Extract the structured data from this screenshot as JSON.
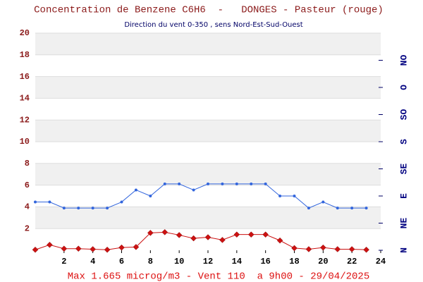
{
  "chart_data": {
    "type": "line",
    "title": "Concentration de Benzene C6H6  -   DONGES - Pasteur (rouge)",
    "subtitle": "Direction du vent 0-350 , sens Nord-Est-Sud-Ouest",
    "annotation": "Max 1.665 microg/m3 - Vent 110  a 9h00 - 29/04/2025",
    "x": [
      0,
      1,
      2,
      3,
      4,
      5,
      6,
      7,
      8,
      9,
      10,
      11,
      12,
      13,
      14,
      15,
      16,
      17,
      18,
      19,
      20,
      21,
      22,
      23
    ],
    "xlim": [
      0,
      24
    ],
    "xticks": [
      2,
      4,
      6,
      8,
      10,
      12,
      14,
      16,
      18,
      20,
      22,
      24
    ],
    "ylim": [
      0,
      20
    ],
    "yticks": [
      2,
      4,
      6,
      8,
      10,
      12,
      14,
      16,
      18,
      20
    ],
    "y2lim": [
      0,
      360
    ],
    "y2ticks": [
      {
        "value": 0,
        "label": "N"
      },
      {
        "value": 45,
        "label": "NE"
      },
      {
        "value": 90,
        "label": "E"
      },
      {
        "value": 135,
        "label": "SE"
      },
      {
        "value": 180,
        "label": "S"
      },
      {
        "value": 225,
        "label": "SO"
      },
      {
        "value": 270,
        "label": "O"
      },
      {
        "value": 315,
        "label": "NO"
      }
    ],
    "banded_background": true,
    "series": [
      {
        "color": "#cc1111",
        "marker": "diamond",
        "axis": "y",
        "values": [
          0.05,
          0.5,
          0.15,
          0.15,
          0.1,
          0.05,
          0.25,
          0.3,
          1.6,
          1.665,
          1.4,
          1.1,
          1.2,
          0.95,
          1.45,
          1.45,
          1.45,
          0.9,
          0.2,
          0.1,
          0.25,
          0.1,
          0.1,
          0.05
        ]
      },
      {
        "color": "#3366dd",
        "marker": "dot",
        "axis": "y2",
        "values": [
          80,
          80,
          70,
          70,
          70,
          70,
          80,
          100,
          90,
          110,
          110,
          100,
          110,
          110,
          110,
          110,
          110,
          90,
          90,
          70,
          80,
          70,
          70,
          70
        ]
      }
    ]
  }
}
